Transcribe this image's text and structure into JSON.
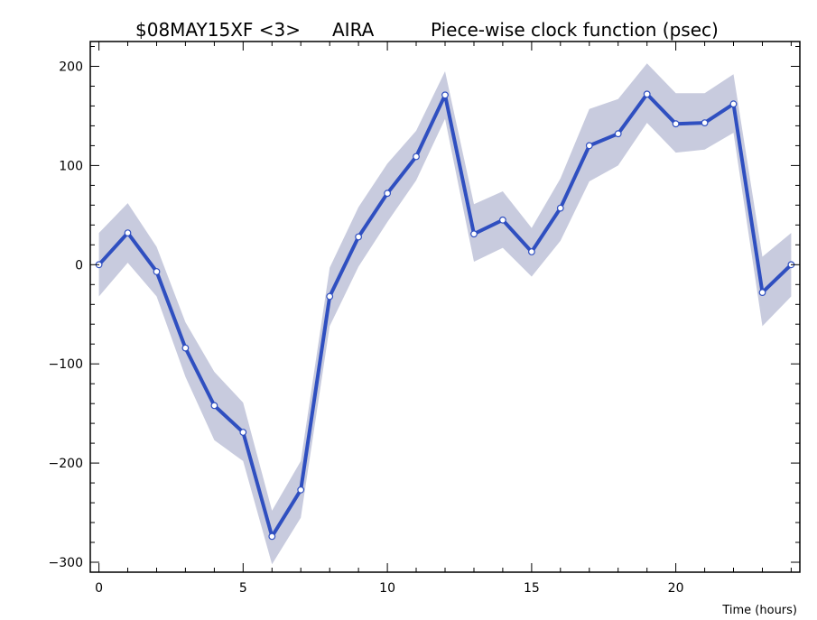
{
  "header": {
    "source_label": "$08MAY15XF <3>",
    "station_label": "AIRA",
    "title": "Piece-wise clock function (psec)"
  },
  "chart_data": {
    "type": "line",
    "title": "Piece-wise clock function (psec)",
    "xlabel": "Time (hours)",
    "ylabel": "",
    "xlim": [
      -0.3,
      24.3
    ],
    "ylim": [
      -310,
      225
    ],
    "x_ticks": [
      0,
      5,
      10,
      15,
      20
    ],
    "y_ticks": [
      -300,
      -200,
      -100,
      0,
      100,
      200
    ],
    "x_tick_labels": [
      "0",
      "5",
      "10",
      "15",
      "20"
    ],
    "y_tick_labels": [
      "−300",
      "−200",
      "−100",
      "0",
      "100",
      "200"
    ],
    "grid": false,
    "series": [
      {
        "x": [
          0,
          1,
          2,
          3,
          4,
          5,
          6,
          7,
          8,
          9,
          10,
          11,
          12,
          13,
          14,
          15,
          16,
          17,
          18,
          19,
          20,
          21,
          22,
          23,
          24
        ],
        "y": [
          0,
          32,
          -7,
          -84,
          -142,
          -169,
          -274,
          -227,
          -32,
          28,
          72,
          109,
          171,
          31,
          45,
          13,
          57,
          120,
          132,
          172,
          142,
          143,
          162,
          -28,
          0
        ],
        "lower": [
          -32,
          2,
          -32,
          -113,
          -177,
          -198,
          -302,
          -255,
          -62,
          -2,
          43,
          85,
          147,
          3,
          17,
          -12,
          24,
          84,
          100,
          143,
          113,
          116,
          133,
          -62,
          -32
        ],
        "upper": [
          32,
          62,
          18,
          -58,
          -108,
          -139,
          -248,
          -198,
          -3,
          58,
          102,
          135,
          195,
          61,
          74,
          37,
          87,
          157,
          167,
          203,
          173,
          173,
          192,
          8,
          32
        ]
      }
    ],
    "colors": {
      "line": "#2f4fc0",
      "band": "#c8cbde",
      "marker_fill": "#ffffff",
      "marker_stroke": "#2f4fc0"
    }
  }
}
